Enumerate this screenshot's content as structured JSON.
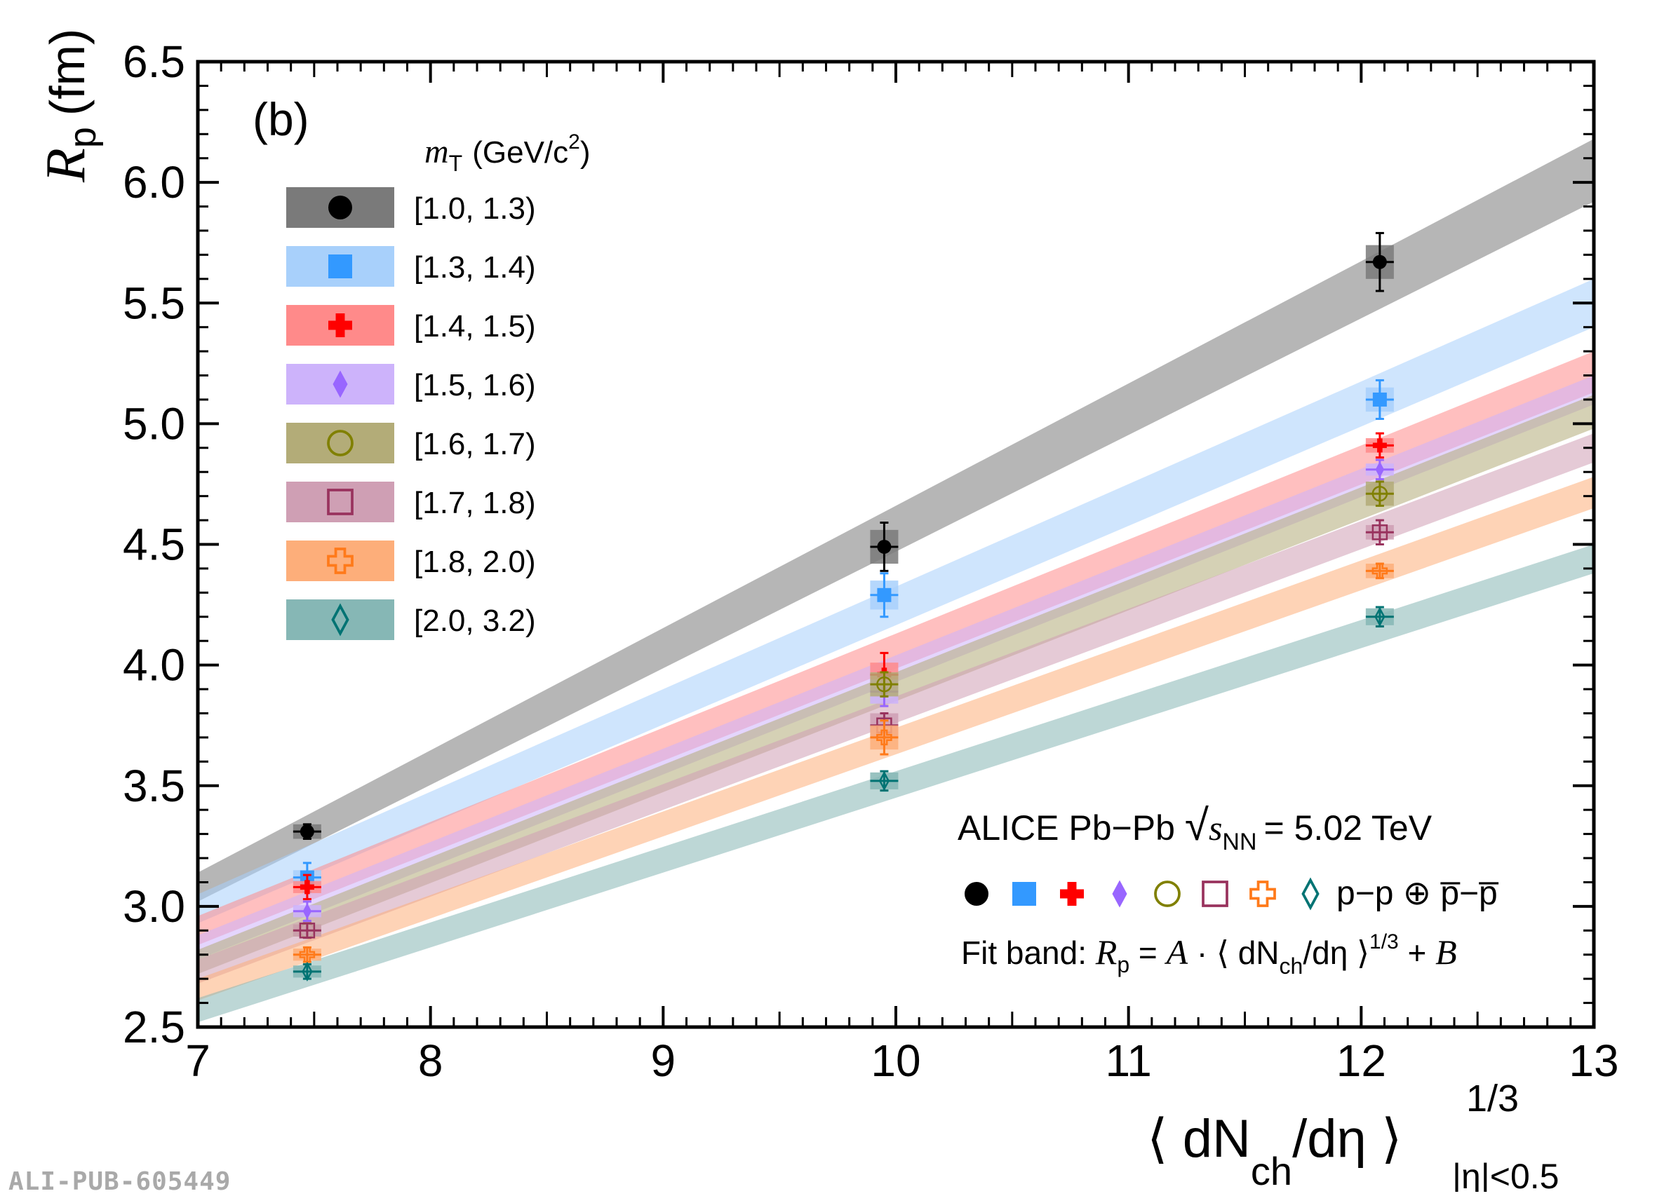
{
  "chart_data": {
    "type": "scatter",
    "panel_label": "(b)",
    "ylabel": {
      "symbol": "R",
      "sub": "p",
      "unit": "(fm)"
    },
    "xlabel": {
      "main": "⟨ dN",
      "sub1": "ch",
      "mid": "/dη ⟩",
      "sup": "1/3",
      "sub2": "|η|<0.5"
    },
    "xlim": [
      7,
      13
    ],
    "ylim": [
      2.5,
      6.5
    ],
    "xticks": [
      7,
      8,
      9,
      10,
      11,
      12,
      13
    ],
    "xtick_labels": [
      "7",
      "8",
      "9",
      "10",
      "11",
      "12",
      "13"
    ],
    "yticks": [
      2.5,
      3.0,
      3.5,
      4.0,
      4.5,
      5.0,
      5.5,
      6.0,
      6.5
    ],
    "ytick_labels": [
      "2.5",
      "3.0",
      "3.5",
      "4.0",
      "4.5",
      "5.0",
      "5.5",
      "6.0",
      "6.5"
    ],
    "legend_title": {
      "m": "m",
      "msub": "T",
      "unit": "(GeV/c",
      "sup": "2",
      "close": ")"
    },
    "legend_placement": "top-left",
    "x": [
      7.47,
      9.95,
      12.08
    ],
    "series": [
      {
        "name": "[1.0, 1.3)",
        "color": "#000000",
        "band_color": "#7a7a7a",
        "marker": "filled-circle",
        "values": [
          3.31,
          4.49,
          5.67
        ],
        "fit_band": {
          "at_x7": [
            3.02,
            3.14
          ],
          "at_x13": [
            5.92,
            6.18
          ]
        }
      },
      {
        "name": "[1.3, 1.4)",
        "color": "#3399ff",
        "band_color": "#a8d0fb",
        "marker": "filled-square",
        "values": [
          3.12,
          4.29,
          5.1
        ],
        "fit_band": {
          "at_x7": [
            2.93,
            3.05
          ],
          "at_x13": [
            5.4,
            5.6
          ]
        }
      },
      {
        "name": "[1.4, 1.5)",
        "color": "#ff0000",
        "band_color": "#ff8a8a",
        "marker": "filled-cross",
        "values": [
          3.08,
          3.96,
          4.91
        ],
        "fit_band": {
          "at_x7": [
            2.84,
            2.96
          ],
          "at_x13": [
            5.13,
            5.3
          ]
        }
      },
      {
        "name": "[1.5, 1.6)",
        "color": "#9966ff",
        "band_color": "#cdb3fb",
        "marker": "filled-diamond",
        "values": [
          2.98,
          3.89,
          4.81
        ],
        "fit_band": {
          "at_x7": [
            2.78,
            2.88
          ],
          "at_x13": [
            5.08,
            5.2
          ]
        }
      },
      {
        "name": "[1.6, 1.7)",
        "color": "#808000",
        "band_color": "#b3ac78",
        "marker": "open-circle",
        "values": [
          2.9,
          3.92,
          4.71
        ],
        "fit_band": {
          "at_x7": [
            2.72,
            2.82
          ],
          "at_x13": [
            4.98,
            5.12
          ]
        }
      },
      {
        "name": "[1.7, 1.8)",
        "color": "#99335e",
        "band_color": "#cf9fb4",
        "marker": "open-square",
        "values": [
          2.9,
          3.75,
          4.55
        ],
        "fit_band": {
          "at_x7": [
            2.68,
            2.78
          ],
          "at_x13": [
            4.84,
            4.96
          ]
        }
      },
      {
        "name": "[1.8, 2.0)",
        "color": "#ff7a1a",
        "band_color": "#fdae7a",
        "marker": "open-cross",
        "values": [
          2.8,
          3.7,
          4.39
        ],
        "fit_band": {
          "at_x7": [
            2.61,
            2.7
          ],
          "at_x13": [
            4.65,
            4.78
          ]
        }
      },
      {
        "name": "[2.0, 3.2)",
        "color": "#007373",
        "band_color": "#86b7b5",
        "marker": "open-diamond",
        "values": [
          2.73,
          3.52,
          4.2
        ],
        "fit_band": {
          "at_x7": [
            2.52,
            2.62
          ],
          "at_x13": [
            4.38,
            4.5
          ]
        }
      }
    ],
    "y_errors": [
      [
        0.03,
        0.1,
        0.12
      ],
      [
        0.06,
        0.09,
        0.08
      ],
      [
        0.05,
        0.09,
        0.05
      ],
      [
        0.04,
        0.06,
        0.04
      ],
      [
        0.03,
        0.05,
        0.05
      ],
      [
        0.03,
        0.05,
        0.05
      ],
      [
        0.03,
        0.07,
        0.03
      ],
      [
        0.03,
        0.04,
        0.04
      ]
    ],
    "syst_box_heights": [
      [
        0.06,
        0.14,
        0.14
      ],
      [
        0.06,
        0.12,
        0.1
      ],
      [
        0.05,
        0.1,
        0.06
      ],
      [
        0.05,
        0.1,
        0.05
      ],
      [
        0.05,
        0.1,
        0.1
      ],
      [
        0.05,
        0.1,
        0.06
      ],
      [
        0.05,
        0.1,
        0.06
      ],
      [
        0.05,
        0.07,
        0.07
      ]
    ],
    "annotation": {
      "experiment": "ALICE Pb−Pb",
      "energy_sym": "s",
      "energy_sub": "NN",
      "energy_val": "= 5.02 TeV",
      "pairs": "p−p ⊕ p̅−p̅",
      "fit_prefix": "Fit band: ",
      "fit_R": "R",
      "fit_Rsub": "p",
      "fit_mid": " = ",
      "fit_A": "A",
      "fit_dot": " · ⟨ dN",
      "fit_ch": "ch",
      "fit_tail": "/dη ⟩",
      "fit_sup": "1/3",
      "fit_plus": " + ",
      "fit_B": "B"
    }
  },
  "watermark": "ALI-PUB-605449"
}
